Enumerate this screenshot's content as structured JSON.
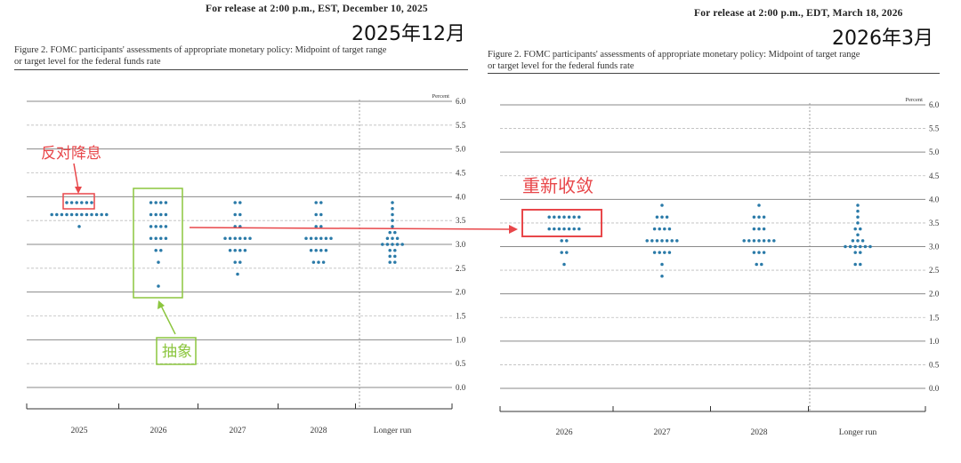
{
  "left": {
    "release": "For release at 2:00 p.m., EST, December 10, 2025",
    "date_label": "2025年12月",
    "figure_title_line1": "Figure 2. FOMC participants' assessments of appropriate monetary policy: Midpoint of target range",
    "figure_title_line2": "or target level for the federal funds rate",
    "annotation_oppose": "反对降息",
    "annotation_abstract": "抽象"
  },
  "right": {
    "release": "For release at 2:00 p.m., EDT, March 18, 2026",
    "date_label": "2026年3月",
    "figure_title_line1": "Figure 2. FOMC participants' assessments of appropriate monetary policy: Midpoint of target range",
    "figure_title_line2": "or target level for the federal funds rate",
    "annotation_converge": "重新收敛"
  },
  "colors": {
    "dot": "#2a7aa8",
    "red": "#e8474a",
    "green": "#8cc63f",
    "grid": "#999999"
  },
  "chart_data": [
    {
      "type": "scatter",
      "title": "Figure 2. FOMC participants' assessments of appropriate monetary policy: Midpoint of target range or target level for the federal funds rate",
      "ylabel": "Percent",
      "ylim": [
        0,
        6
      ],
      "yticks": [
        "0.0",
        "0.5",
        "1.0",
        "1.5",
        "2.0",
        "2.5",
        "3.0",
        "3.5",
        "4.0",
        "4.5",
        "5.0",
        "5.5",
        "6.0"
      ],
      "categories": [
        "2025",
        "2026",
        "2027",
        "2028",
        "Longer run"
      ],
      "counts": [
        [
          {
            "y": 3.875,
            "n": 6
          },
          {
            "y": 3.625,
            "n": 12
          },
          {
            "y": 3.375,
            "n": 1
          }
        ],
        [
          {
            "y": 3.875,
            "n": 4
          },
          {
            "y": 3.625,
            "n": 4
          },
          {
            "y": 3.375,
            "n": 4
          },
          {
            "y": 3.125,
            "n": 4
          },
          {
            "y": 2.875,
            "n": 2
          },
          {
            "y": 2.625,
            "n": 1
          },
          {
            "y": 2.125,
            "n": 1
          }
        ],
        [
          {
            "y": 3.875,
            "n": 2
          },
          {
            "y": 3.625,
            "n": 2
          },
          {
            "y": 3.375,
            "n": 2
          },
          {
            "y": 3.125,
            "n": 6
          },
          {
            "y": 2.875,
            "n": 4
          },
          {
            "y": 2.625,
            "n": 2
          },
          {
            "y": 2.375,
            "n": 1
          }
        ],
        [
          {
            "y": 3.875,
            "n": 2
          },
          {
            "y": 3.625,
            "n": 2
          },
          {
            "y": 3.375,
            "n": 2
          },
          {
            "y": 3.125,
            "n": 6
          },
          {
            "y": 2.875,
            "n": 4
          },
          {
            "y": 2.625,
            "n": 3
          }
        ],
        [
          {
            "y": 3.875,
            "n": 1
          },
          {
            "y": 3.75,
            "n": 1
          },
          {
            "y": 3.625,
            "n": 1
          },
          {
            "y": 3.5,
            "n": 1
          },
          {
            "y": 3.375,
            "n": 1
          },
          {
            "y": 3.25,
            "n": 2
          },
          {
            "y": 3.125,
            "n": 3
          },
          {
            "y": 3.0,
            "n": 5
          },
          {
            "y": 2.875,
            "n": 2
          },
          {
            "y": 2.75,
            "n": 2
          },
          {
            "y": 2.625,
            "n": 2
          }
        ]
      ]
    },
    {
      "type": "scatter",
      "title": "Figure 2. FOMC participants' assessments of appropriate monetary policy: Midpoint of target range or target level for the federal funds rate",
      "ylabel": "Percent",
      "ylim": [
        0,
        6
      ],
      "yticks": [
        "0.0",
        "0.5",
        "1.0",
        "1.5",
        "2.0",
        "2.5",
        "3.0",
        "3.5",
        "4.0",
        "4.5",
        "5.0",
        "5.5",
        "6.0"
      ],
      "categories": [
        "2026",
        "2027",
        "2028",
        "Longer run"
      ],
      "counts": [
        [
          {
            "y": 3.625,
            "n": 7
          },
          {
            "y": 3.375,
            "n": 7
          },
          {
            "y": 3.125,
            "n": 2
          },
          {
            "y": 2.875,
            "n": 2
          },
          {
            "y": 2.625,
            "n": 1
          }
        ],
        [
          {
            "y": 3.875,
            "n": 1
          },
          {
            "y": 3.625,
            "n": 3
          },
          {
            "y": 3.375,
            "n": 4
          },
          {
            "y": 3.125,
            "n": 7
          },
          {
            "y": 2.875,
            "n": 4
          },
          {
            "y": 2.625,
            "n": 1
          },
          {
            "y": 2.375,
            "n": 1
          }
        ],
        [
          {
            "y": 3.875,
            "n": 1
          },
          {
            "y": 3.625,
            "n": 3
          },
          {
            "y": 3.375,
            "n": 3
          },
          {
            "y": 3.125,
            "n": 7
          },
          {
            "y": 2.875,
            "n": 3
          },
          {
            "y": 2.625,
            "n": 2
          }
        ],
        [
          {
            "y": 3.875,
            "n": 1
          },
          {
            "y": 3.75,
            "n": 1
          },
          {
            "y": 3.625,
            "n": 1
          },
          {
            "y": 3.5,
            "n": 1
          },
          {
            "y": 3.375,
            "n": 2
          },
          {
            "y": 3.25,
            "n": 1
          },
          {
            "y": 3.125,
            "n": 3
          },
          {
            "y": 3.0,
            "n": 6
          },
          {
            "y": 2.875,
            "n": 2
          },
          {
            "y": 2.625,
            "n": 2
          }
        ]
      ]
    }
  ]
}
